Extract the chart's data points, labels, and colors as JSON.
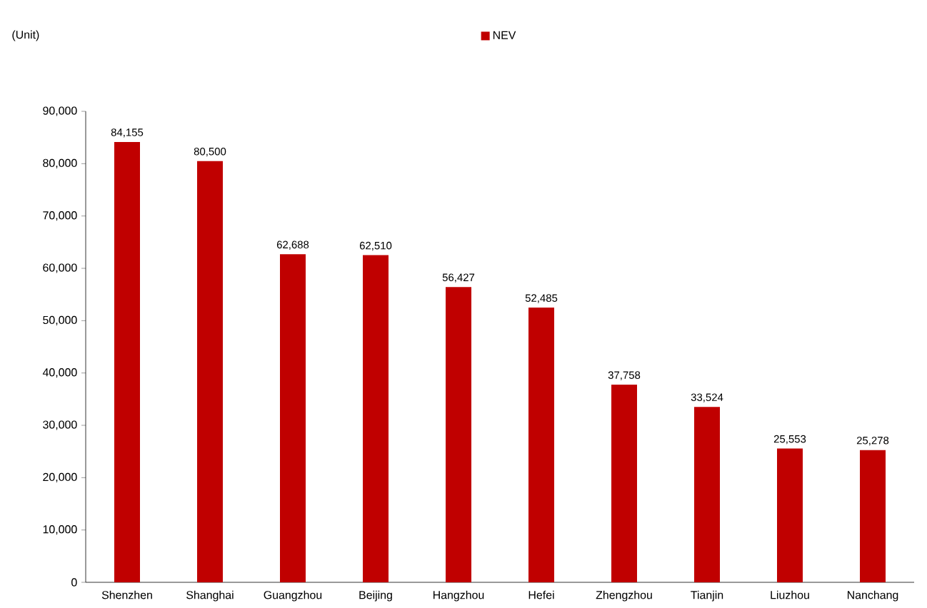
{
  "chart_data": {
    "type": "bar",
    "annotations": [
      "(Unit)"
    ],
    "categories": [
      "Shenzhen",
      "Shanghai",
      "Guangzhou",
      "Beijing",
      "Hangzhou",
      "Hefei",
      "Zhengzhou",
      "Tianjin",
      "Liuzhou",
      "Nanchang"
    ],
    "series": [
      {
        "name": "NEV",
        "color": "#c00000",
        "values": [
          84155,
          80500,
          62688,
          62510,
          56427,
          52485,
          37758,
          33524,
          25553,
          25278
        ],
        "value_labels": [
          "84,155",
          "80,500",
          "62,688",
          "62,510",
          "56,427",
          "52,485",
          "37,758",
          "33,524",
          "25,553",
          "25,278"
        ]
      }
    ],
    "ylim": [
      0,
      90000
    ],
    "yticks": [
      0,
      {
        "value": 10000,
        "label": "10,000"
      },
      {
        "value": 20000,
        "label": "20,000"
      },
      {
        "value": 30000,
        "label": "30,000"
      },
      {
        "value": 40000,
        "label": "40,000"
      },
      {
        "value": 50000,
        "label": "50,000"
      },
      {
        "value": 60000,
        "label": "60,000"
      },
      {
        "value": 70000,
        "label": "70,000"
      },
      {
        "value": 80000,
        "label": "80,000"
      },
      {
        "value": 90000,
        "label": "90,000"
      }
    ],
    "legend": "top",
    "grid": false
  }
}
